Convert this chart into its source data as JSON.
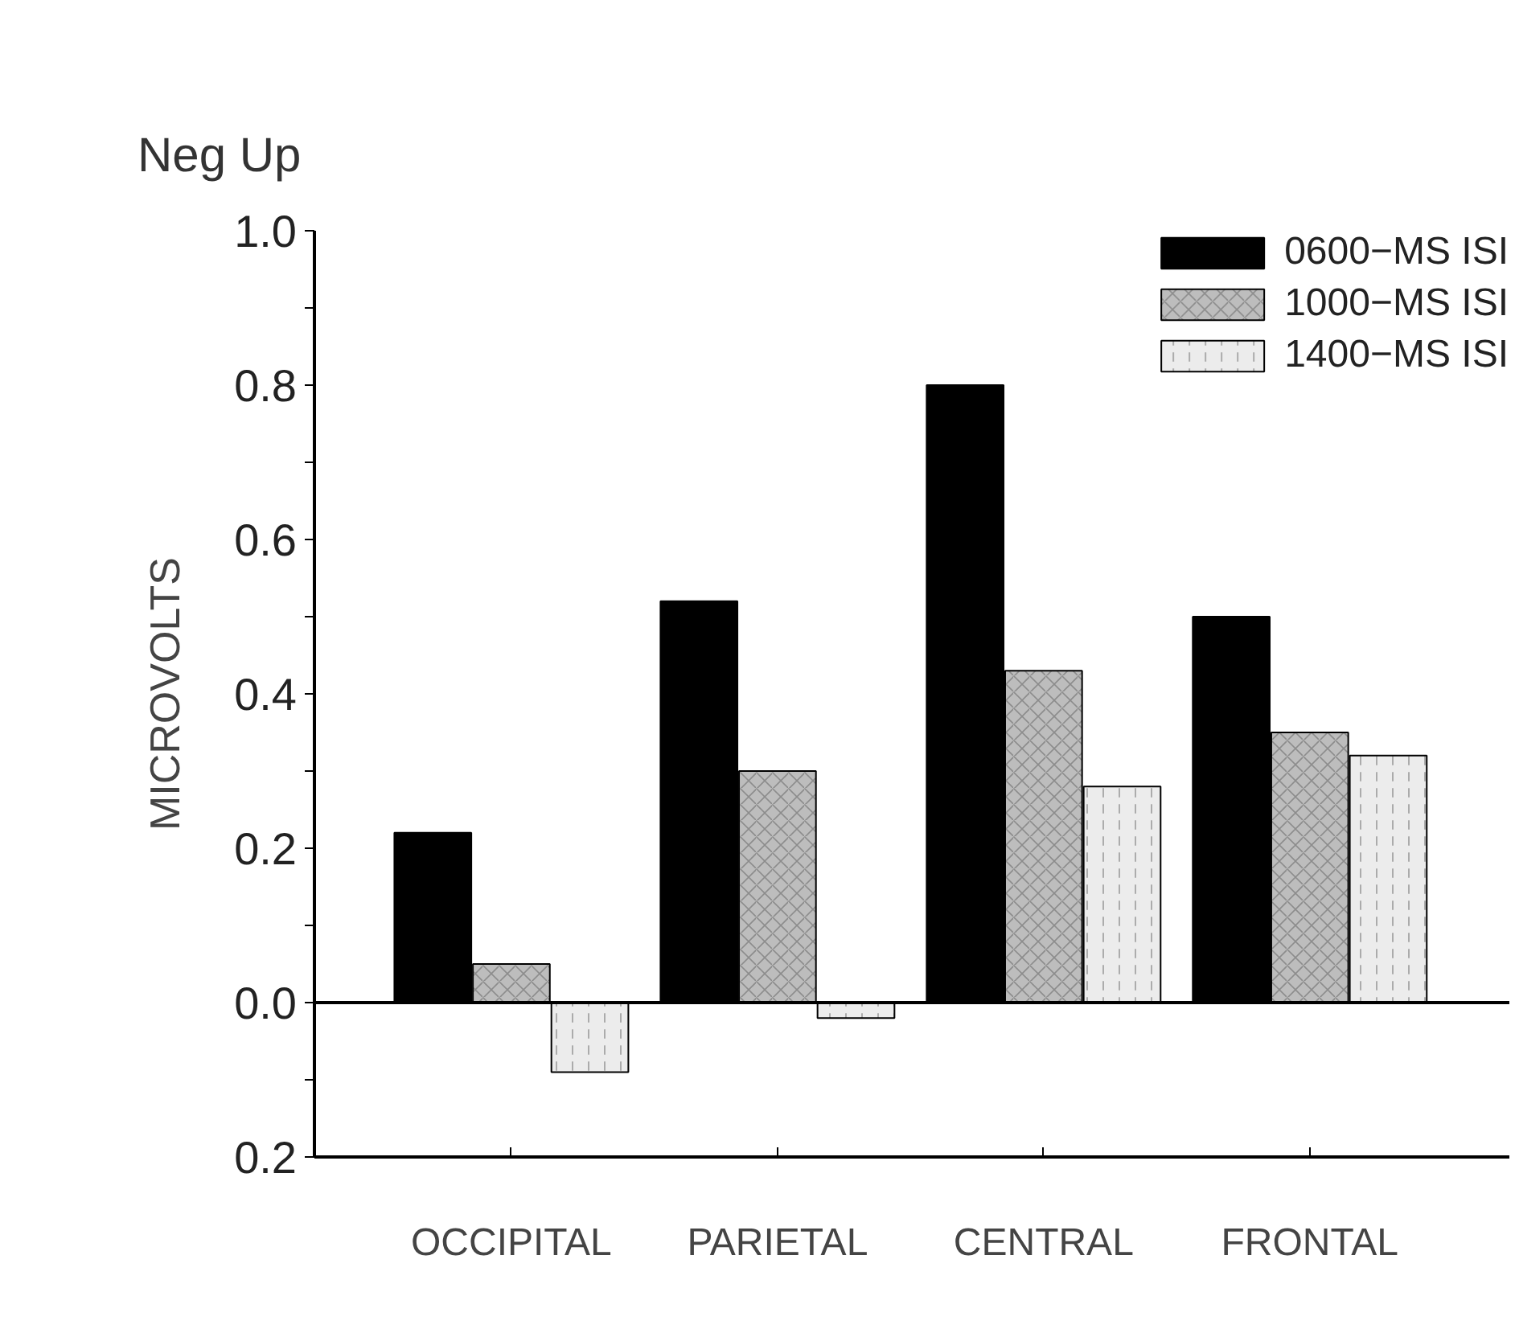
{
  "chart_data": {
    "type": "bar",
    "title": "Neg Up",
    "ylabel": "MICROVOLTS",
    "categories": [
      "OCCIPITAL",
      "PARIETAL",
      "CENTRAL",
      "FRONTAL"
    ],
    "series": [
      {
        "name": "0600−MS ISI",
        "color": "#000000",
        "values": [
          0.22,
          0.52,
          0.8,
          0.5
        ]
      },
      {
        "name": "1000−MS ISI",
        "color": "#bdbdbd",
        "values": [
          0.05,
          0.3,
          0.43,
          0.35
        ]
      },
      {
        "name": "1400−MS ISI",
        "color": "#ececec",
        "values": [
          -0.09,
          -0.02,
          0.28,
          0.32
        ]
      }
    ],
    "ylim": [
      -0.2,
      1.0
    ],
    "yticks": [
      {
        "value": -0.2,
        "label": "0.2"
      },
      {
        "value": -0.1,
        "label": null
      },
      {
        "value": 0.0,
        "label": "0.0"
      },
      {
        "value": 0.1,
        "label": null
      },
      0.2,
      {
        "value": 0.3,
        "label": null
      },
      0.4,
      {
        "value": 0.5,
        "label": null
      },
      0.6,
      {
        "value": 0.7,
        "label": null
      },
      0.8,
      {
        "value": 0.9,
        "label": null
      },
      {
        "value": 1.0,
        "label": "1.0"
      }
    ],
    "ref_lines": [
      {
        "axis": "y",
        "value": 0,
        "color": "#000000"
      }
    ],
    "grid": false,
    "legend": "top right"
  }
}
